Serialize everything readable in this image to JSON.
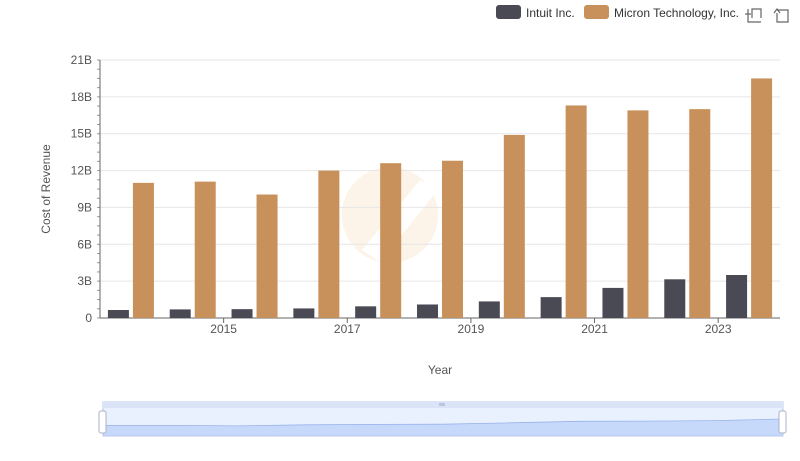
{
  "chart_data": {
    "type": "bar",
    "x": [
      2014,
      2015,
      2016,
      2017,
      2018,
      2019,
      2020,
      2021,
      2022,
      2023,
      2024
    ],
    "x_tick_labels": [
      "2015",
      "2017",
      "2019",
      "2021",
      "2023"
    ],
    "x_tick_values": [
      2015,
      2017,
      2019,
      2021,
      2023
    ],
    "series": [
      {
        "name": "Intuit Inc.",
        "color": "#4a4a55",
        "values": [
          0.65,
          0.7,
          0.72,
          0.78,
          0.95,
          1.1,
          1.35,
          1.7,
          2.45,
          3.15,
          3.5
        ]
      },
      {
        "name": "Micron Technology, Inc.",
        "color": "#c8905a",
        "values": [
          11.0,
          11.1,
          10.05,
          12.0,
          12.6,
          12.8,
          14.9,
          17.3,
          16.9,
          17.0,
          19.5
        ]
      }
    ],
    "xlabel": "Year",
    "ylabel": "Cost of Revenue",
    "ylim": [
      0,
      21
    ],
    "y_tick_labels": [
      "0",
      "3B",
      "6B",
      "9B",
      "12B",
      "15B",
      "18B",
      "21B"
    ],
    "y_tick_values": [
      0,
      3,
      6,
      9,
      12,
      15,
      18,
      21
    ],
    "grid": true,
    "legend_position": "top-right"
  },
  "toolbar": {
    "zoom_icon": "zoom-select-icon",
    "reset_icon": "zoom-reset-icon"
  }
}
